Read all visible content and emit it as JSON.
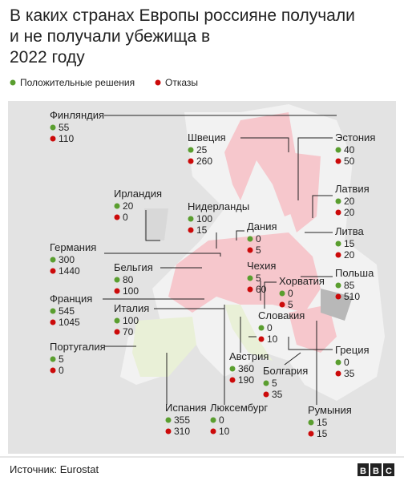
{
  "title": "В каких странах Европы россияне получали и не получали убежища в 2022 году",
  "legend": {
    "positive": "Положительные решения",
    "refusals": "Отказы"
  },
  "countries": [
    {
      "name": "Финляндия",
      "positive": 55,
      "refusals": 110
    },
    {
      "name": "Швеция",
      "positive": 25,
      "refusals": 260
    },
    {
      "name": "Эстония",
      "positive": 40,
      "refusals": 50
    },
    {
      "name": "Ирландия",
      "positive": 20,
      "refusals": 0
    },
    {
      "name": "Нидерланды",
      "positive": 100,
      "refusals": 15
    },
    {
      "name": "Латвия",
      "positive": 20,
      "refusals": 20
    },
    {
      "name": "Дания",
      "positive": 0,
      "refusals": 5
    },
    {
      "name": "Германия",
      "positive": 300,
      "refusals": 1440
    },
    {
      "name": "Литва",
      "positive": 15,
      "refusals": 20
    },
    {
      "name": "Бельгия",
      "positive": 80,
      "refusals": 100
    },
    {
      "name": "Чехия",
      "positive": 5,
      "refusals": 60
    },
    {
      "name": "Польша",
      "positive": 85,
      "refusals": 510
    },
    {
      "name": "Хорватия",
      "positive": 0,
      "refusals": 5
    },
    {
      "name": "Франция",
      "positive": 545,
      "refusals": 1045
    },
    {
      "name": "Италия",
      "positive": 100,
      "refusals": 70
    },
    {
      "name": "Словакия",
      "positive": 0,
      "refusals": 10
    },
    {
      "name": "Португалия",
      "positive": 5,
      "refusals": 0
    },
    {
      "name": "Греция",
      "positive": 0,
      "refusals": 35
    },
    {
      "name": "Австрия",
      "positive": 360,
      "refusals": 190
    },
    {
      "name": "Болгария",
      "positive": 5,
      "refusals": 35
    },
    {
      "name": "Испания",
      "positive": 355,
      "refusals": 310
    },
    {
      "name": "Люксембург",
      "positive": 0,
      "refusals": 10
    },
    {
      "name": "Румыния",
      "positive": 15,
      "refusals": 15
    }
  ],
  "source": "Источник: Eurostat",
  "logo": "BBC"
}
